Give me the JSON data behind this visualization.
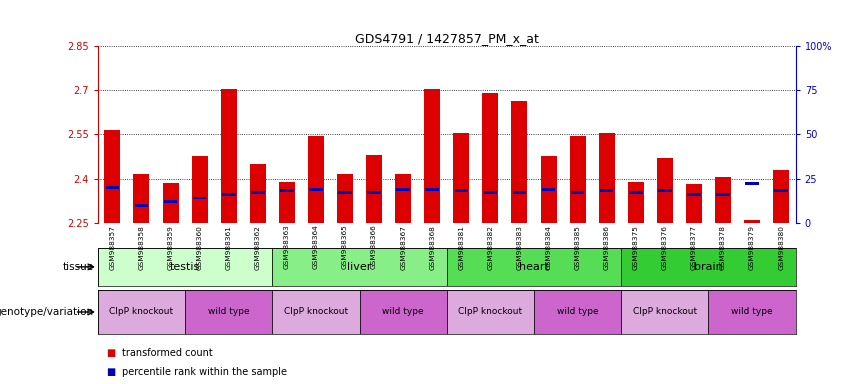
{
  "title": "GDS4791 / 1427857_PM_x_at",
  "samples": [
    "GSM988357",
    "GSM988358",
    "GSM988359",
    "GSM988360",
    "GSM988361",
    "GSM988362",
    "GSM988363",
    "GSM988364",
    "GSM988365",
    "GSM988366",
    "GSM988367",
    "GSM988368",
    "GSM988381",
    "GSM988382",
    "GSM988383",
    "GSM988384",
    "GSM988385",
    "GSM988386",
    "GSM988375",
    "GSM988376",
    "GSM988377",
    "GSM988378",
    "GSM988379",
    "GSM988380"
  ],
  "transformed_count": [
    2.565,
    2.415,
    2.385,
    2.475,
    2.705,
    2.45,
    2.39,
    2.545,
    2.415,
    2.48,
    2.415,
    2.705,
    2.555,
    2.69,
    2.665,
    2.475,
    2.545,
    2.555,
    2.39,
    2.47,
    2.38,
    2.405,
    2.26,
    2.43
  ],
  "percentile_rank_pct": [
    20,
    10,
    12,
    14,
    16,
    17,
    18,
    19,
    17,
    17,
    19,
    19,
    18,
    17,
    17,
    19,
    17,
    18,
    17,
    18,
    16,
    16,
    22,
    18
  ],
  "ymin": 2.25,
  "ymax": 2.85,
  "yticks": [
    2.25,
    2.4,
    2.55,
    2.7,
    2.85
  ],
  "ytick_labels": [
    "2.25",
    "2.4",
    "2.55",
    "2.7",
    "2.85"
  ],
  "right_yticks_pct": [
    0,
    25,
    50,
    75,
    100
  ],
  "right_ytick_labels": [
    "0",
    "25",
    "50",
    "75",
    "100%"
  ],
  "bar_color": "#dd0000",
  "blue_color": "#0000bb",
  "tissues": [
    {
      "name": "testis",
      "start": 0,
      "end": 6,
      "color": "#ccffcc"
    },
    {
      "name": "liver",
      "start": 6,
      "end": 12,
      "color": "#88ee88"
    },
    {
      "name": "heart",
      "start": 12,
      "end": 18,
      "color": "#55dd55"
    },
    {
      "name": "brain",
      "start": 18,
      "end": 24,
      "color": "#33cc33"
    }
  ],
  "genotypes": [
    {
      "name": "ClpP knockout",
      "start": 0,
      "end": 3,
      "color": "#ddaadd"
    },
    {
      "name": "wild type",
      "start": 3,
      "end": 6,
      "color": "#cc66cc"
    },
    {
      "name": "ClpP knockout",
      "start": 6,
      "end": 9,
      "color": "#ddaadd"
    },
    {
      "name": "wild type",
      "start": 9,
      "end": 12,
      "color": "#cc66cc"
    },
    {
      "name": "ClpP knockout",
      "start": 12,
      "end": 15,
      "color": "#ddaadd"
    },
    {
      "name": "wild type",
      "start": 15,
      "end": 18,
      "color": "#cc66cc"
    },
    {
      "name": "ClpP knockout",
      "start": 18,
      "end": 21,
      "color": "#ddaadd"
    },
    {
      "name": "wild type",
      "start": 21,
      "end": 24,
      "color": "#cc66cc"
    }
  ],
  "tissue_row_label": "tissue",
  "genotype_row_label": "genotype/variation",
  "legend_items": [
    {
      "label": "transformed count",
      "color": "#dd0000"
    },
    {
      "label": "percentile rank within the sample",
      "color": "#0000bb"
    }
  ],
  "bg_color": "#ffffff",
  "left_axis_color": "#cc0000",
  "right_axis_color": "#0000cc",
  "bar_width": 0.55
}
